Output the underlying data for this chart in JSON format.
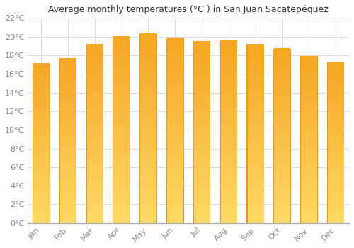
{
  "title": "Average monthly temperatures (°C ) in San Juan Sacatepéquez",
  "months": [
    "Jan",
    "Feb",
    "Mar",
    "Apr",
    "May",
    "Jun",
    "Jul",
    "Aug",
    "Sep",
    "Oct",
    "Nov",
    "Dec"
  ],
  "values": [
    17.1,
    17.7,
    19.2,
    20.0,
    20.3,
    19.9,
    19.5,
    19.6,
    19.2,
    18.7,
    17.9,
    17.2
  ],
  "bar_color_top": "#F5A623",
  "bar_color_bottom": "#FFD966",
  "bar_edge_color": "#E8972A",
  "background_color": "#FFFFFF",
  "grid_color": "#DDDDDD",
  "ylim": [
    0,
    22
  ],
  "ytick_step": 2,
  "title_fontsize": 9,
  "tick_fontsize": 8,
  "tick_color": "#888888",
  "title_color": "#333333"
}
